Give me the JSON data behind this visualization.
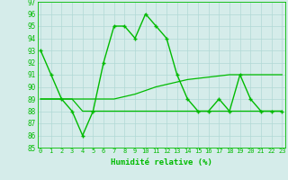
{
  "x": [
    0,
    1,
    2,
    3,
    4,
    5,
    6,
    7,
    8,
    9,
    10,
    11,
    12,
    13,
    14,
    15,
    16,
    17,
    18,
    19,
    20,
    21,
    22,
    23
  ],
  "y_main": [
    93,
    91,
    89,
    88,
    86,
    88,
    92,
    95,
    95,
    94,
    96,
    95,
    94,
    91,
    89,
    88,
    88,
    89,
    88,
    91,
    89,
    88,
    88,
    88
  ],
  "y_trend1": [
    89,
    89,
    89,
    89,
    88,
    88,
    88,
    88,
    88,
    88,
    88,
    88,
    88,
    88,
    88,
    88,
    88,
    88,
    88,
    88,
    88,
    88,
    88,
    88
  ],
  "y_trend2": [
    89,
    89,
    89,
    89,
    89,
    89,
    89,
    89,
    89.2,
    89.4,
    89.7,
    90.0,
    90.2,
    90.4,
    90.6,
    90.7,
    90.8,
    90.9,
    91.0,
    91.0,
    91.0,
    91.0,
    91.0,
    91.0
  ],
  "ylim": [
    85,
    97
  ],
  "yticks": [
    85,
    86,
    87,
    88,
    89,
    90,
    91,
    92,
    93,
    94,
    95,
    96,
    97
  ],
  "xlabel": "Humidité relative (%)",
  "line_color": "#00bb00",
  "bg_color": "#d5ecea",
  "grid_color": "#b0d8d5",
  "marker": "+"
}
